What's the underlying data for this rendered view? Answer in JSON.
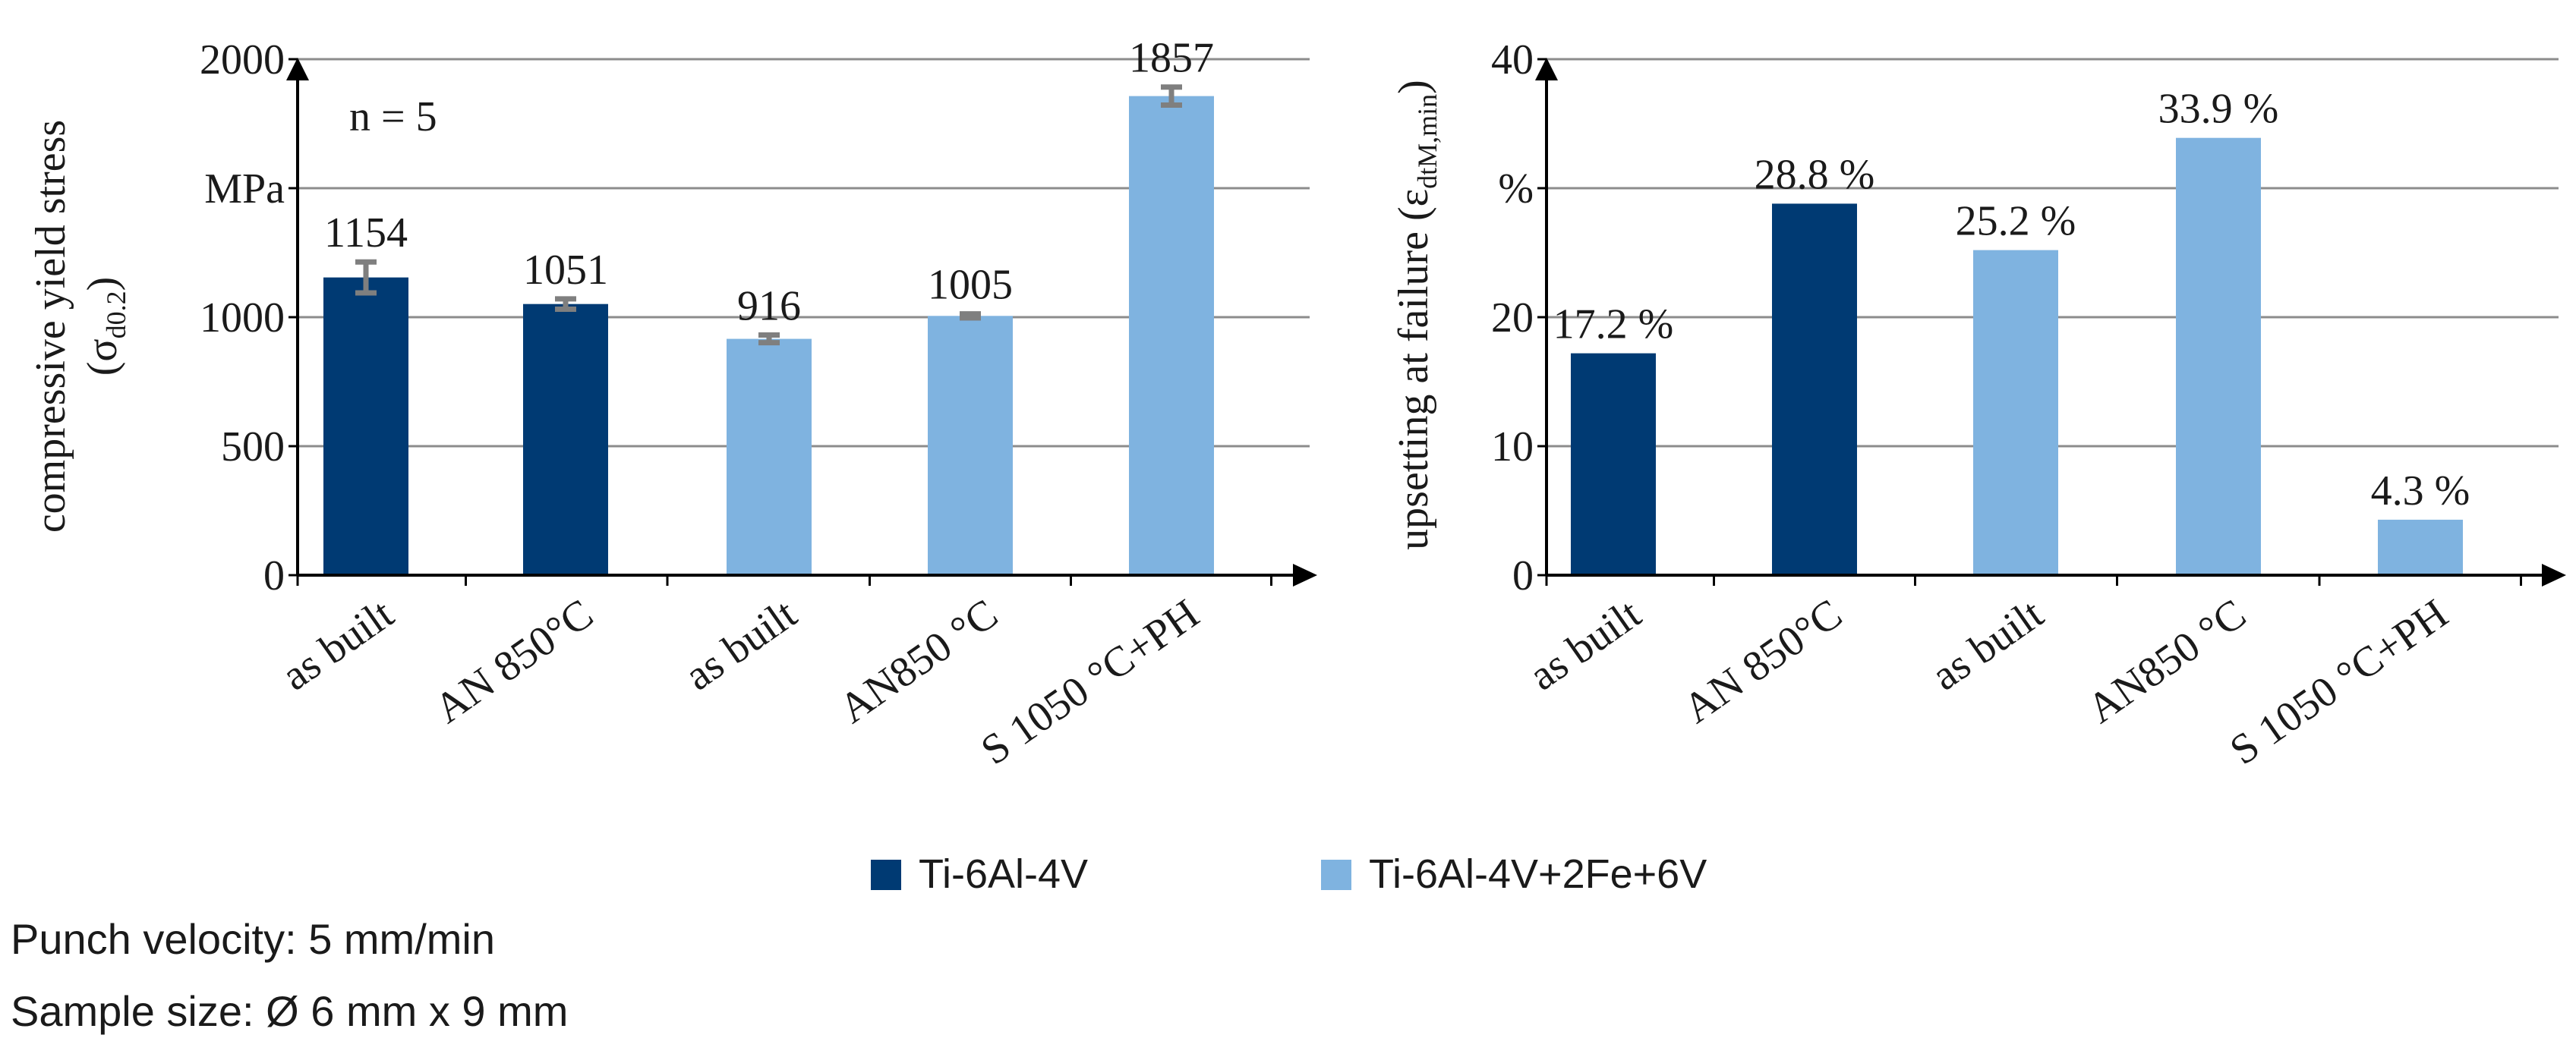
{
  "colors": {
    "dark": "#003a73",
    "light": "#7fb3e0",
    "grid": "#8c8c8c",
    "axis": "#000000",
    "errbar": "#7f7f7f"
  },
  "legend": [
    {
      "label": "Ti-6Al-4V",
      "color": "#003a73"
    },
    {
      "label": "Ti-6Al-4V+2Fe+6V",
      "color": "#7fb3e0"
    }
  ],
  "notes": {
    "punch_velocity": "Punch velocity: 5 mm/min",
    "sample_size": "Sample size: Ø 6 mm x 9 mm"
  },
  "chart_data": [
    {
      "type": "bar",
      "ylabel": "compressive  yield  stress",
      "ylabel_symbol": "σ",
      "ylabel_sub": "d0.2",
      "unit": "MPa",
      "annotation": "n = 5",
      "ylim": [
        0,
        2000
      ],
      "yticks": [
        0,
        500,
        1000,
        2000
      ],
      "grid_values": [
        500,
        1000,
        1500,
        2000
      ],
      "categories": [
        "as built",
        "AN 850°C",
        "as built",
        "AN850 °C",
        "S 1050 °C+PH"
      ],
      "values": [
        1154,
        1051,
        916,
        1005,
        1857
      ],
      "value_labels": [
        "1154",
        "1051",
        "916",
        "1005",
        "1857"
      ],
      "errors": [
        60,
        20,
        15,
        8,
        35
      ],
      "series_index": [
        0,
        0,
        1,
        1,
        1
      ]
    },
    {
      "type": "bar",
      "ylabel": "upsetting  at failure",
      "ylabel_symbol": "ε",
      "ylabel_sub": "dtM,min",
      "unit": "%",
      "ylim": [
        0,
        40
      ],
      "yticks": [
        0,
        10,
        20,
        40
      ],
      "grid_values": [
        10,
        20,
        30,
        40
      ],
      "categories": [
        "as built",
        "AN 850°C",
        "as built",
        "AN850 °C",
        "S 1050 °C+PH"
      ],
      "values": [
        17.2,
        28.8,
        25.2,
        33.9,
        4.3
      ],
      "value_labels": [
        "17.2 %",
        "28.8 %",
        "25.2 %",
        "33.9 %",
        "4.3 %"
      ],
      "series_index": [
        0,
        0,
        1,
        1,
        1
      ]
    }
  ]
}
